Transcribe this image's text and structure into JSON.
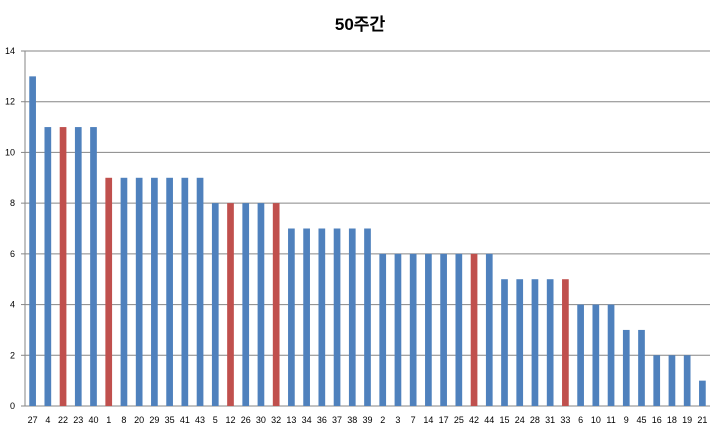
{
  "chart_data": {
    "type": "bar",
    "title": "50주간",
    "ylim": [
      0,
      14
    ],
    "yticks": [
      0,
      2,
      4,
      6,
      8,
      10,
      12,
      14
    ],
    "grid": true,
    "categories": [
      "27",
      "4",
      "22",
      "23",
      "40",
      "1",
      "8",
      "20",
      "29",
      "35",
      "41",
      "43",
      "5",
      "12",
      "26",
      "30",
      "32",
      "13",
      "34",
      "36",
      "37",
      "38",
      "39",
      "2",
      "3",
      "7",
      "14",
      "17",
      "25",
      "42",
      "44",
      "15",
      "24",
      "28",
      "31",
      "33",
      "6",
      "10",
      "11",
      "9",
      "45",
      "16",
      "18",
      "19",
      "21"
    ],
    "values": [
      13,
      11,
      11,
      11,
      11,
      9,
      9,
      9,
      9,
      9,
      9,
      9,
      8,
      8,
      8,
      8,
      8,
      7,
      7,
      7,
      7,
      7,
      7,
      6,
      6,
      6,
      6,
      6,
      6,
      6,
      6,
      5,
      5,
      5,
      5,
      5,
      4,
      4,
      4,
      3,
      3,
      2,
      2,
      2,
      1
    ],
    "highlighted": [
      "22",
      "1",
      "12",
      "32",
      "42",
      "33"
    ],
    "colors": {
      "bar": "#4f81bd",
      "highlight": "#c0504d",
      "grid": "#868686",
      "axis": "#868686"
    }
  }
}
